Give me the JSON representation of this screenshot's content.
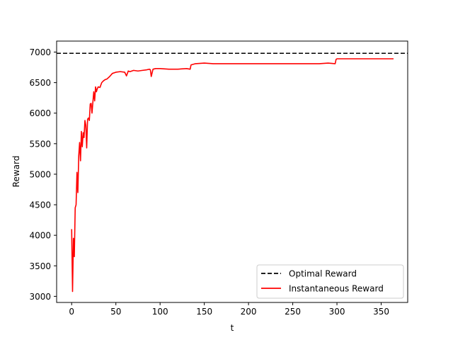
{
  "chart_data": {
    "type": "line",
    "title": "",
    "xlabel": "t",
    "ylabel": "Reward",
    "xlim": [
      -17,
      380
    ],
    "ylim": [
      2900,
      7180
    ],
    "xticks": [
      0,
      50,
      100,
      150,
      200,
      250,
      300,
      350
    ],
    "yticks": [
      3000,
      3500,
      4000,
      4500,
      5000,
      5500,
      6000,
      6500,
      7000
    ],
    "grid": false,
    "legend_position": "lower-right",
    "series": [
      {
        "name": "Optimal Reward",
        "style": "dashed",
        "color": "#000000",
        "x": [
          -17,
          380
        ],
        "y": [
          6980,
          6980
        ]
      },
      {
        "name": "Instantaneous Reward",
        "style": "solid",
        "color": "#ff0000",
        "x": [
          0,
          1,
          2,
          3,
          4,
          5,
          6,
          7,
          8,
          9,
          10,
          11,
          12,
          13,
          14,
          15,
          16,
          17,
          18,
          19,
          20,
          21,
          22,
          23,
          24,
          25,
          26,
          27,
          28,
          29,
          30,
          32,
          34,
          36,
          38,
          40,
          43,
          46,
          50,
          55,
          60,
          62,
          64,
          66,
          70,
          75,
          80,
          85,
          88,
          89,
          90,
          92,
          95,
          100,
          110,
          120,
          130,
          134,
          135,
          140,
          150,
          160,
          170,
          180,
          190,
          200,
          210,
          220,
          230,
          240,
          250,
          260,
          270,
          280,
          290,
          298,
          299,
          300,
          310,
          320,
          330,
          340,
          350,
          360,
          364
        ],
        "y": [
          4100,
          3080,
          3950,
          3650,
          4450,
          4500,
          5030,
          4700,
          5300,
          5520,
          5220,
          5700,
          5450,
          5680,
          5600,
          5880,
          5800,
          5430,
          5900,
          5920,
          5880,
          6150,
          6160,
          6000,
          6180,
          6350,
          6200,
          6430,
          6350,
          6400,
          6430,
          6420,
          6500,
          6530,
          6550,
          6560,
          6600,
          6650,
          6670,
          6680,
          6670,
          6610,
          6690,
          6680,
          6700,
          6690,
          6700,
          6710,
          6720,
          6710,
          6600,
          6720,
          6730,
          6730,
          6720,
          6720,
          6730,
          6720,
          6790,
          6810,
          6820,
          6810,
          6810,
          6810,
          6810,
          6810,
          6810,
          6810,
          6810,
          6810,
          6810,
          6810,
          6810,
          6810,
          6820,
          6810,
          6880,
          6890,
          6890,
          6890,
          6890,
          6890,
          6890,
          6890,
          6890
        ]
      }
    ]
  }
}
